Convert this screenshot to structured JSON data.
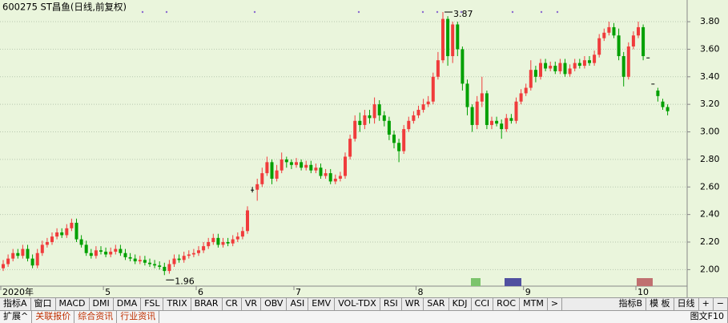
{
  "chart_data": {
    "type": "candlestick",
    "title": "600275 ST昌鱼(日线,前复权)",
    "categories": [
      "2020年",
      null,
      null,
      null,
      null,
      null,
      null,
      null,
      null,
      null,
      null,
      null,
      null,
      null,
      null,
      null,
      null,
      null,
      null,
      null,
      null,
      "5",
      null,
      null,
      null,
      null,
      null,
      null,
      null,
      null,
      null,
      null,
      null,
      null,
      null,
      null,
      null,
      null,
      null,
      null,
      "6",
      null,
      null,
      null,
      null,
      null,
      null,
      null,
      null,
      null,
      null,
      null,
      null,
      null,
      null,
      null,
      null,
      null,
      null,
      null,
      "7",
      null,
      null,
      null,
      null,
      null,
      null,
      null,
      null,
      null,
      null,
      null,
      null,
      null,
      null,
      null,
      null,
      null,
      null,
      null,
      null,
      null,
      null,
      null,
      null,
      "8",
      null,
      null,
      null,
      null,
      null,
      null,
      null,
      null,
      null,
      null,
      null,
      null,
      null,
      null,
      null,
      null,
      null,
      null,
      null,
      null,
      null,
      "9",
      null,
      null,
      null,
      null,
      null,
      null,
      null,
      null,
      null,
      null,
      null,
      null,
      null,
      null,
      null,
      null,
      null,
      null,
      null,
      null,
      null,
      null,
      "10",
      null,
      null,
      null,
      null,
      null,
      null
    ],
    "open": [
      2.01,
      2.04,
      2.08,
      2.12,
      2.1,
      2.15,
      2.08,
      2.03,
      2.12,
      2.18,
      2.2,
      2.24,
      2.27,
      2.25,
      2.3,
      2.34,
      2.22,
      2.18,
      2.12,
      2.1,
      2.14,
      2.13,
      2.11,
      2.13,
      2.15,
      2.12,
      2.09,
      2.08,
      2.06,
      2.07,
      2.05,
      2.04,
      2.03,
      2.02,
      1.99,
      2.04,
      2.08,
      2.07,
      2.1,
      2.11,
      2.12,
      2.14,
      2.17,
      2.2,
      2.23,
      2.18,
      2.2,
      2.19,
      2.22,
      2.24,
      2.28,
      2.58,
      2.58,
      2.62,
      2.7,
      2.78,
      2.66,
      2.72,
      2.8,
      2.78,
      2.76,
      2.78,
      2.74,
      2.76,
      2.72,
      2.74,
      2.68,
      2.7,
      2.64,
      2.66,
      2.68,
      2.82,
      2.95,
      3.08,
      3.05,
      3.12,
      3.1,
      3.2,
      3.12,
      3.08,
      2.98,
      2.92,
      2.86,
      3.02,
      3.08,
      3.12,
      3.16,
      3.2,
      3.22,
      3.4,
      3.52,
      3.82,
      3.55,
      3.78,
      3.6,
      3.35,
      3.18,
      3.05,
      3.22,
      3.28,
      3.05,
      3.08,
      3.06,
      3.02,
      3.1,
      3.08,
      3.22,
      3.28,
      3.32,
      3.45,
      3.4,
      3.5,
      3.46,
      3.48,
      3.44,
      3.5,
      3.42,
      3.46,
      3.5,
      3.48,
      3.52,
      3.5,
      3.56,
      3.68,
      3.72,
      3.76,
      3.7,
      3.55,
      3.4,
      3.62,
      3.7,
      3.76,
      3.54,
      3.35,
      3.3,
      3.22,
      3.18
    ],
    "high": [
      2.07,
      2.11,
      2.15,
      2.15,
      2.18,
      2.18,
      2.11,
      2.15,
      2.21,
      2.23,
      2.27,
      2.3,
      2.3,
      2.33,
      2.37,
      2.37,
      2.25,
      2.21,
      2.15,
      2.17,
      2.17,
      2.16,
      2.16,
      2.18,
      2.18,
      2.15,
      2.12,
      2.11,
      2.1,
      2.1,
      2.08,
      2.07,
      2.06,
      2.05,
      2.07,
      2.11,
      2.11,
      2.13,
      2.14,
      2.15,
      2.17,
      2.2,
      2.23,
      2.26,
      2.26,
      2.23,
      2.23,
      2.25,
      2.27,
      2.31,
      2.46,
      2.6,
      2.66,
      2.74,
      2.82,
      2.8,
      2.76,
      2.85,
      2.82,
      2.8,
      2.81,
      2.8,
      2.79,
      2.79,
      2.77,
      2.77,
      2.73,
      2.73,
      2.69,
      2.71,
      2.85,
      2.98,
      3.12,
      3.14,
      3.16,
      3.16,
      3.25,
      3.23,
      3.15,
      3.11,
      3.01,
      2.95,
      3.05,
      3.11,
      3.15,
      3.19,
      3.24,
      3.26,
      3.43,
      3.58,
      3.87,
      3.84,
      3.8,
      3.8,
      3.62,
      3.38,
      3.2,
      3.26,
      3.4,
      3.3,
      3.11,
      3.11,
      3.09,
      3.13,
      3.13,
      3.25,
      3.31,
      3.35,
      3.52,
      3.48,
      3.53,
      3.53,
      3.51,
      3.51,
      3.53,
      3.53,
      3.49,
      3.53,
      3.53,
      3.55,
      3.55,
      3.59,
      3.71,
      3.75,
      3.8,
      3.79,
      3.75,
      3.58,
      3.65,
      3.73,
      3.8,
      3.78,
      3.54,
      3.35,
      3.32,
      3.24,
      3.2
    ],
    "low": [
      1.99,
      2.02,
      2.06,
      2.08,
      2.08,
      2.06,
      2.01,
      2.01,
      2.1,
      2.16,
      2.18,
      2.22,
      2.23,
      2.23,
      2.28,
      2.2,
      2.16,
      2.1,
      2.08,
      2.08,
      2.11,
      2.09,
      2.09,
      2.11,
      2.1,
      2.07,
      2.06,
      2.04,
      2.04,
      2.03,
      2.02,
      2.01,
      2.0,
      1.96,
      1.97,
      2.02,
      2.05,
      2.05,
      2.08,
      2.09,
      2.1,
      2.12,
      2.15,
      2.18,
      2.16,
      2.16,
      2.17,
      2.17,
      2.2,
      2.22,
      2.26,
      2.56,
      2.5,
      2.6,
      2.68,
      2.62,
      2.64,
      2.7,
      2.74,
      2.73,
      2.74,
      2.72,
      2.72,
      2.7,
      2.7,
      2.66,
      2.66,
      2.62,
      2.62,
      2.64,
      2.66,
      2.8,
      2.93,
      3.0,
      3.02,
      3.06,
      3.06,
      3.08,
      3.04,
      2.94,
      2.88,
      2.78,
      2.84,
      3.0,
      3.06,
      3.1,
      3.14,
      3.18,
      3.2,
      3.38,
      3.5,
      3.48,
      3.5,
      3.55,
      3.3,
      3.12,
      3.0,
      3.02,
      3.18,
      3.02,
      3.02,
      3.04,
      2.95,
      3.0,
      3.06,
      3.06,
      3.2,
      3.26,
      3.3,
      3.36,
      3.38,
      3.44,
      3.44,
      3.42,
      3.42,
      3.4,
      3.4,
      3.44,
      3.46,
      3.46,
      3.48,
      3.48,
      3.54,
      3.66,
      3.7,
      3.68,
      3.52,
      3.33,
      3.38,
      3.6,
      3.68,
      3.52,
      3.54,
      3.35,
      3.22,
      3.16,
      3.12
    ],
    "close": [
      2.04,
      2.08,
      2.12,
      2.1,
      2.15,
      2.08,
      2.03,
      2.12,
      2.18,
      2.2,
      2.24,
      2.27,
      2.25,
      2.3,
      2.34,
      2.22,
      2.18,
      2.12,
      2.1,
      2.14,
      2.13,
      2.11,
      2.13,
      2.15,
      2.12,
      2.09,
      2.08,
      2.06,
      2.07,
      2.05,
      2.04,
      2.03,
      2.02,
      1.99,
      2.04,
      2.08,
      2.07,
      2.1,
      2.11,
      2.12,
      2.14,
      2.17,
      2.2,
      2.23,
      2.18,
      2.2,
      2.19,
      2.22,
      2.24,
      2.28,
      2.43,
      2.58,
      2.62,
      2.7,
      2.78,
      2.66,
      2.72,
      2.8,
      2.78,
      2.76,
      2.78,
      2.74,
      2.76,
      2.72,
      2.74,
      2.68,
      2.7,
      2.64,
      2.66,
      2.68,
      2.82,
      2.95,
      3.08,
      3.05,
      3.12,
      3.1,
      3.2,
      3.12,
      3.08,
      2.98,
      2.92,
      2.86,
      3.02,
      3.08,
      3.12,
      3.16,
      3.2,
      3.22,
      3.4,
      3.52,
      3.82,
      3.55,
      3.78,
      3.6,
      3.35,
      3.18,
      3.05,
      3.22,
      3.28,
      3.05,
      3.08,
      3.06,
      3.02,
      3.1,
      3.08,
      3.22,
      3.28,
      3.32,
      3.45,
      3.4,
      3.5,
      3.46,
      3.48,
      3.44,
      3.5,
      3.42,
      3.46,
      3.5,
      3.48,
      3.52,
      3.5,
      3.56,
      3.68,
      3.72,
      3.76,
      3.7,
      3.55,
      3.4,
      3.62,
      3.7,
      3.76,
      3.55,
      3.54,
      3.35,
      3.26,
      3.18,
      3.15
    ],
    "up_color": "#f03c3c",
    "down_color": "#00a000",
    "grid": true,
    "ylim": [
      1.88,
      3.94
    ],
    "yticks": [
      {
        "value": 2.0,
        "label": "2.00"
      },
      {
        "value": 2.2,
        "label": "2.20"
      },
      {
        "value": 2.4,
        "label": "2.40"
      },
      {
        "value": 2.6,
        "label": "2.60"
      },
      {
        "value": 2.8,
        "label": "2.80"
      },
      {
        "value": 3.0,
        "label": "3.00"
      },
      {
        "value": 3.2,
        "label": "3.20"
      },
      {
        "value": 3.4,
        "label": "3.40"
      },
      {
        "value": 3.6,
        "label": "3.60"
      },
      {
        "value": 3.8,
        "label": "3.80"
      }
    ],
    "high_annotation_index": 90,
    "low_annotation_index": 33
  },
  "toolbar": {
    "tabs": [
      "指标A",
      "窗口",
      "MACD",
      "DMI",
      "DMA",
      "FSL",
      "TRIX",
      "BRAR",
      "CR",
      "VR",
      "OBV",
      "ASI",
      "EMV",
      "VOL-TDX",
      "RSI",
      "WR",
      "SAR",
      "KDJ",
      "CCI",
      "ROC",
      "MTM",
      ">"
    ],
    "right": [
      "指标B",
      "模 板"
    ],
    "period": "日线",
    "controls": [
      "+",
      "−"
    ]
  },
  "bottom": {
    "tabs": [
      "扩展^",
      "关联报价",
      "综合资讯",
      "行业资讯"
    ],
    "right": [
      "图文F10"
    ]
  }
}
